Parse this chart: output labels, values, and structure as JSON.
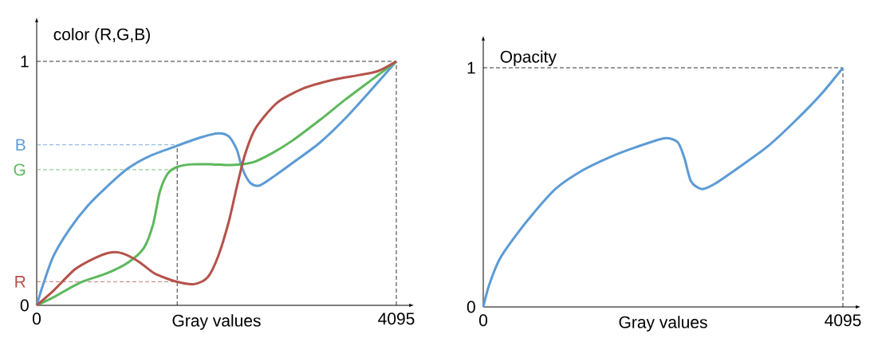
{
  "chart_data": [
    {
      "type": "line",
      "ylabel": "color (R,G,B)",
      "xlabel": "Gray values",
      "xlim": [
        0,
        4095
      ],
      "ylim": [
        0,
        1
      ],
      "xticks": [
        0,
        4095
      ],
      "yticks": [
        0,
        1
      ],
      "series": [
        {
          "color": "#5b9bd5",
          "x": [
            0,
            70,
            191,
            372,
            584,
            796,
            1038,
            1280,
            1598,
            1856,
            2067,
            2188,
            2279,
            2340,
            2431,
            2537,
            2703,
            2915,
            3218,
            3520,
            3823,
            4095
          ],
          "values": [
            0,
            0.082,
            0.202,
            0.311,
            0.409,
            0.485,
            0.561,
            0.611,
            0.654,
            0.687,
            0.705,
            0.692,
            0.638,
            0.562,
            0.502,
            0.491,
            0.529,
            0.584,
            0.665,
            0.769,
            0.889,
            1.0
          ]
        },
        {
          "color": "#5cb85c",
          "x": [
            0,
            191,
            493,
            796,
            1038,
            1220,
            1326,
            1401,
            1492,
            1598,
            1765,
            2007,
            2219,
            2461,
            2673,
            2915,
            3218,
            3520,
            3823,
            4095
          ],
          "values": [
            0,
            0.033,
            0.093,
            0.131,
            0.175,
            0.235,
            0.333,
            0.464,
            0.54,
            0.567,
            0.578,
            0.578,
            0.575,
            0.586,
            0.622,
            0.676,
            0.758,
            0.845,
            0.927,
            1.0
          ]
        },
        {
          "color": "#b5524a",
          "x": [
            0,
            191,
            433,
            645,
            827,
            978,
            1159,
            1341,
            1583,
            1795,
            1947,
            2067,
            2188,
            2279,
            2370,
            2491,
            2733,
            3036,
            3369,
            3672,
            3884,
            4095
          ],
          "values": [
            0,
            0.06,
            0.147,
            0.191,
            0.216,
            0.213,
            0.18,
            0.131,
            0.098,
            0.087,
            0.115,
            0.202,
            0.344,
            0.486,
            0.616,
            0.725,
            0.829,
            0.889,
            0.924,
            0.944,
            0.96,
            1.0
          ]
        }
      ],
      "ref_lines": [
        {
          "axis": "y",
          "value": 1,
          "color": "#000000",
          "line_style": "dashed"
        },
        {
          "axis": "x",
          "value": 4095,
          "color": "#000000",
          "line_style": "dashed"
        },
        {
          "axis": "x",
          "value": 1600,
          "color": "#000000",
          "line_style": "dashed"
        },
        {
          "axis": "y",
          "value": 0.658,
          "label": "B",
          "color": "#5b9bd5",
          "line_style": "dashed"
        },
        {
          "axis": "y",
          "value": 0.556,
          "label": "G",
          "color": "#5cb85c",
          "line_style": "dashed"
        },
        {
          "axis": "y",
          "value": 0.097,
          "label": "R",
          "color": "#b5524a",
          "line_style": "dashed"
        }
      ]
    },
    {
      "type": "line",
      "ylabel": "Opacity",
      "xlabel": "Gray values",
      "xlim": [
        0,
        4095
      ],
      "ylim": [
        0,
        1
      ],
      "xticks": [
        0,
        4095
      ],
      "yticks": [
        0,
        1
      ],
      "series": [
        {
          "color": "#5b9bd5",
          "x": [
            0,
            67,
            188,
            369,
            581,
            823,
            1125,
            1427,
            1730,
            2062,
            2213,
            2289,
            2364,
            2485,
            2637,
            2939,
            3241,
            3544,
            3846,
            4095
          ],
          "values": [
            0,
            0.092,
            0.201,
            0.298,
            0.396,
            0.494,
            0.57,
            0.624,
            0.667,
            0.705,
            0.689,
            0.624,
            0.526,
            0.493,
            0.515,
            0.591,
            0.672,
            0.775,
            0.889,
            1.0
          ]
        }
      ],
      "ref_lines": [
        {
          "axis": "y",
          "value": 1,
          "color": "#000000",
          "line_style": "dashed"
        },
        {
          "axis": "x",
          "value": 4095,
          "color": "#000000",
          "line_style": "dashed"
        }
      ]
    }
  ]
}
